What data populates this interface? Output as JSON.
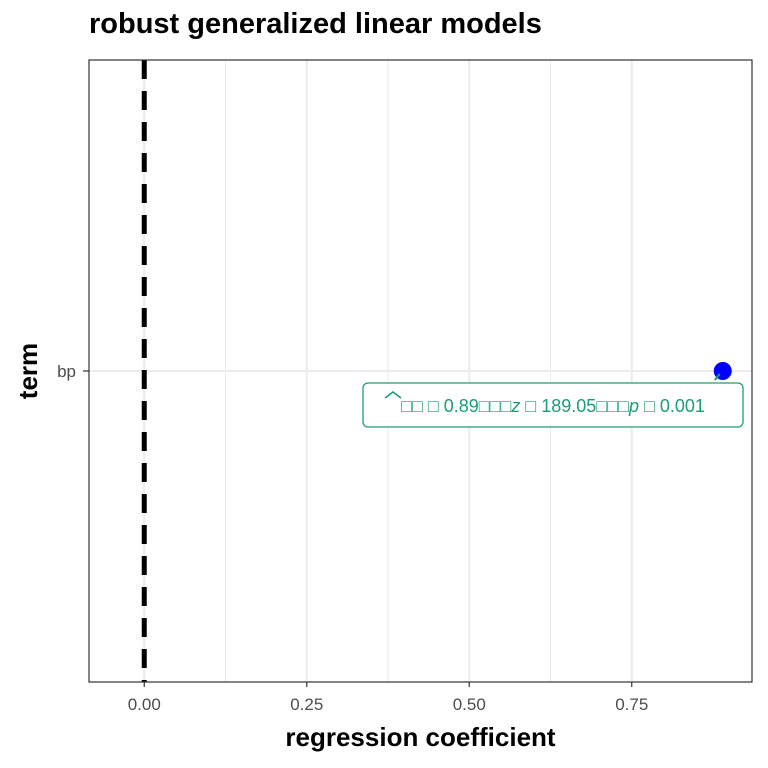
{
  "chart_data": {
    "type": "scatter",
    "title": "robust generalized linear models",
    "xlabel": "regression coefficient",
    "ylabel": "term",
    "xlim": [
      -0.085,
      0.935
    ],
    "x_ticks": [
      {
        "value": 0.0,
        "label": "0.00"
      },
      {
        "value": 0.25,
        "label": "0.25"
      },
      {
        "value": 0.5,
        "label": "0.50"
      },
      {
        "value": 0.75,
        "label": "0.75"
      }
    ],
    "categories": [
      "bp"
    ],
    "points": [
      {
        "term": "bp",
        "estimate": 0.89,
        "color": "#0000ff"
      }
    ],
    "reference_line": {
      "x": 0,
      "style": "dashed",
      "color": "#000000"
    },
    "annotation": {
      "term": "bp",
      "text_parts": [
        "□□ □ 0.89□□□",
        "z",
        " □ 189.05□□□",
        "p",
        " □ 0.001"
      ],
      "color": "#1b9e77"
    },
    "grid": true,
    "legend": "none"
  }
}
